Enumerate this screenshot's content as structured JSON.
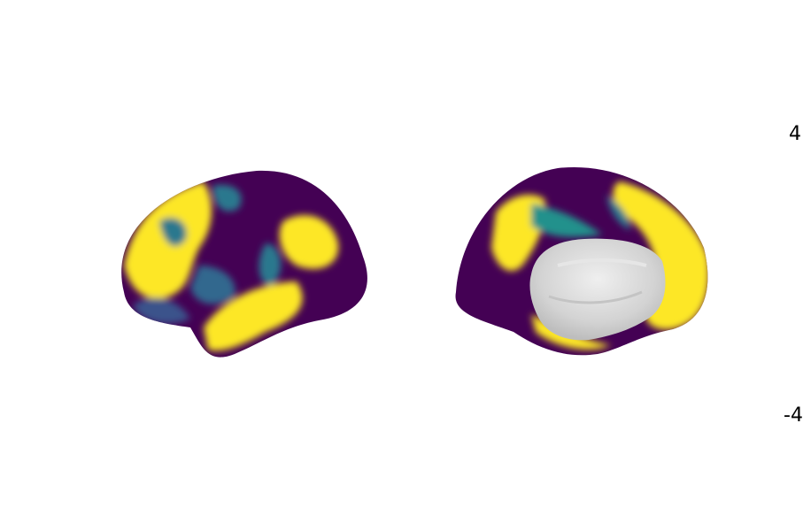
{
  "figure": {
    "views": [
      {
        "name": "lateral",
        "hemisphere": "left"
      },
      {
        "name": "medial",
        "hemisphere": "left"
      }
    ],
    "colormap": "viridis",
    "colors": {
      "low": "#440154",
      "mid": "#2a788e",
      "high": "#fde725",
      "medial_wall": "#d9d9d9",
      "background": "#ffffff"
    }
  },
  "colorbar": {
    "tick_max": "4",
    "tick_min": "-4"
  }
}
